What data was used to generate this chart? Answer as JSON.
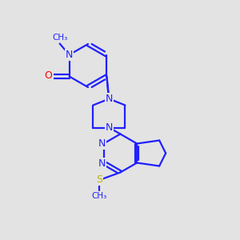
{
  "background_color": "#e3e3e3",
  "bond_color": "#2020ff",
  "bond_width": 1.6,
  "atom_colors": {
    "N": "#2020ff",
    "O": "#ff0000",
    "S": "#b8b800",
    "C": "#2020ff"
  },
  "figsize": [
    3.0,
    3.0
  ],
  "dpi": 100
}
